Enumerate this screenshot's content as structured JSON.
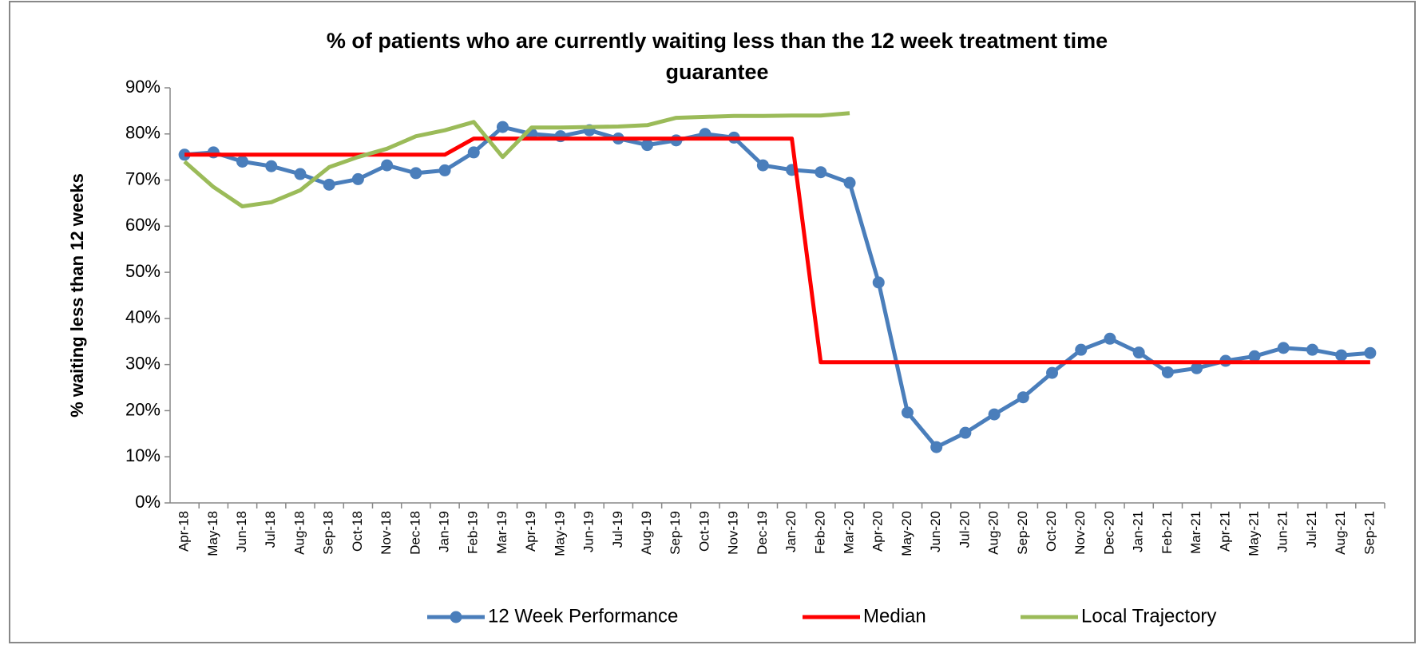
{
  "chart_data": {
    "type": "line",
    "title": "% of patients who are currently waiting less than the 12 week treatment time guarantee",
    "ylabel": "% waiting less than 12 weeks",
    "categories": [
      "Apr-18",
      "May-18",
      "Jun-18",
      "Jul-18",
      "Aug-18",
      "Sep-18",
      "Oct-18",
      "Nov-18",
      "Dec-18",
      "Jan-19",
      "Feb-19",
      "Mar-19",
      "Apr-19",
      "May-19",
      "Jun-19",
      "Jul-19",
      "Aug-19",
      "Sep-19",
      "Oct-19",
      "Nov-19",
      "Dec-19",
      "Jan-20",
      "Feb-20",
      "Mar-20",
      "Apr-20",
      "May-20",
      "Jun-20",
      "Jul-20",
      "Aug-20",
      "Sep-20",
      "Oct-20",
      "Nov-20",
      "Dec-20",
      "Jan-21",
      "Feb-21",
      "Mar-21",
      "Apr-21",
      "May-21",
      "Jun-21",
      "Jul-21",
      "Aug-21",
      "Sep-21"
    ],
    "series": [
      {
        "name": "12 Week Performance",
        "color": "#4a7ebb",
        "markers": true,
        "values": [
          75.5,
          76,
          74,
          73,
          71.3,
          69,
          70.2,
          73.2,
          71.5,
          72.1,
          76,
          81.5,
          80,
          79.5,
          80.8,
          79,
          77.6,
          78.6,
          80,
          79.2,
          73.2,
          72.2,
          71.7,
          69.4,
          47.8,
          19.6,
          12.1,
          15.2,
          19.2,
          22.9,
          28.2,
          33.2,
          35.6,
          32.6,
          28.3,
          29.2,
          30.8,
          31.8,
          33.6,
          33.2,
          32,
          32.5
        ]
      },
      {
        "name": "Median",
        "color": "#ff0000",
        "markers": false,
        "values": [
          75.5,
          75.5,
          75.5,
          75.5,
          75.5,
          75.5,
          75.5,
          75.5,
          75.5,
          75.5,
          79,
          79,
          79,
          79,
          79,
          79,
          79,
          79,
          79,
          79,
          79,
          79,
          30.5,
          30.5,
          30.5,
          30.5,
          30.5,
          30.5,
          30.5,
          30.5,
          30.5,
          30.5,
          30.5,
          30.5,
          30.5,
          30.5,
          30.5,
          30.5,
          30.5,
          30.5,
          30.5,
          30.5
        ]
      },
      {
        "name": "Local Trajectory",
        "color": "#9bbb59",
        "markers": false,
        "values": [
          74,
          68.5,
          64.3,
          65.2,
          67.8,
          72.8,
          75,
          76.8,
          79.5,
          80.8,
          82.6,
          75,
          81.4,
          81.4,
          81.5,
          81.6,
          81.9,
          83.5,
          83.7,
          83.9,
          83.9,
          84,
          84,
          84.5,
          null,
          null,
          null,
          null,
          null,
          null,
          null,
          null,
          null,
          null,
          null,
          null,
          null,
          null,
          null,
          null,
          null,
          null
        ]
      }
    ],
    "ylim": [
      0,
      90
    ],
    "yticks": [
      {
        "value": 0,
        "label": "0%"
      },
      {
        "value": 10,
        "label": "10%"
      },
      {
        "value": 20,
        "label": "20%"
      },
      {
        "value": 30,
        "label": "30%"
      },
      {
        "value": 40,
        "label": "40%"
      },
      {
        "value": 50,
        "label": "50%"
      },
      {
        "value": 60,
        "label": "60%"
      },
      {
        "value": 70,
        "label": "70%"
      },
      {
        "value": 80,
        "label": "80%"
      },
      {
        "value": 90,
        "label": "90%"
      }
    ],
    "grid": false,
    "legend": "bottom"
  }
}
